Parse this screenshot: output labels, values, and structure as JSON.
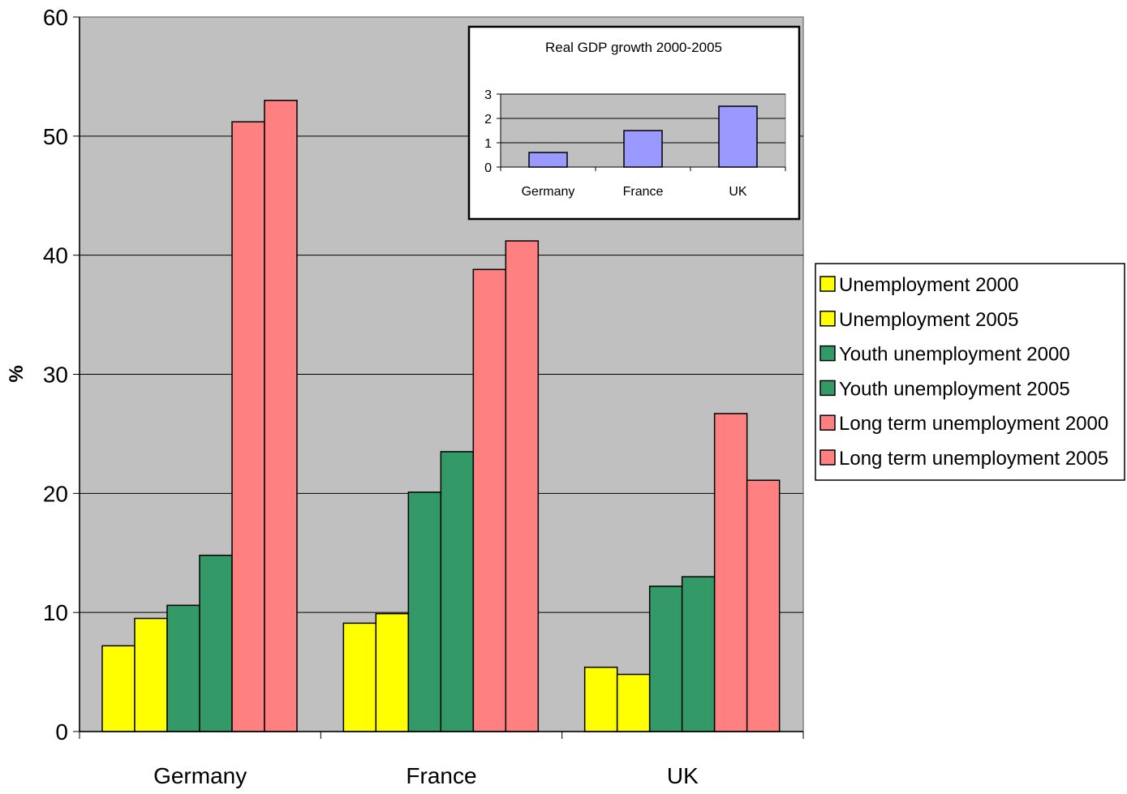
{
  "chart_data": [
    {
      "type": "bar",
      "title": "",
      "xlabel": "",
      "ylabel": "%",
      "ylim": [
        0,
        60
      ],
      "yticks": [
        0,
        10,
        20,
        30,
        40,
        50,
        60
      ],
      "grid": "horizontal",
      "legend_position": "right",
      "categories": [
        "Germany",
        "France",
        "UK"
      ],
      "series": [
        {
          "name": "Unemployment 2000",
          "color": "#FFFF00",
          "values": [
            7.2,
            9.1,
            5.4
          ]
        },
        {
          "name": "Unemployment 2005",
          "color": "#FFFF00",
          "values": [
            9.5,
            9.9,
            4.8
          ]
        },
        {
          "name": "Youth unemployment 2000",
          "color": "#339966",
          "values": [
            10.6,
            20.1,
            12.2
          ]
        },
        {
          "name": "Youth unemployment 2005",
          "color": "#339966",
          "values": [
            14.8,
            23.5,
            13.0
          ]
        },
        {
          "name": "Long term unemployment 2000",
          "color": "#FF8080",
          "values": [
            51.2,
            38.8,
            26.7
          ]
        },
        {
          "name": "Long term unemployment 2005",
          "color": "#FF8080",
          "values": [
            53.0,
            41.2,
            21.1
          ]
        }
      ],
      "plot_background": "#C0C0C0"
    },
    {
      "type": "bar",
      "title": "Real GDP growth 2000-2005",
      "xlabel": "",
      "ylabel": "",
      "ylim": [
        0,
        3
      ],
      "yticks": [
        0,
        1,
        2,
        3
      ],
      "grid": "horizontal",
      "categories": [
        "Germany",
        "France",
        "UK"
      ],
      "series": [
        {
          "color": "#9999FF",
          "values": [
            0.6,
            1.5,
            2.5
          ]
        }
      ],
      "plot_background": "#C0C0C0"
    }
  ]
}
